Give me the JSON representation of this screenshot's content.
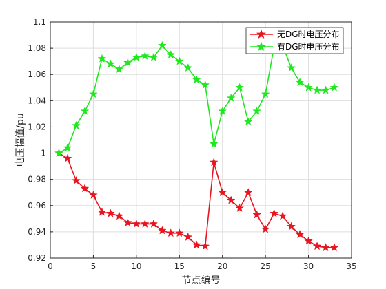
{
  "chart_data": {
    "type": "line",
    "title": "",
    "xlabel": "节点编号",
    "ylabel": "电压幅值/pu",
    "xlim": [
      0,
      35
    ],
    "ylim": [
      0.92,
      1.1
    ],
    "xticks": [
      0,
      5,
      10,
      15,
      20,
      25,
      30,
      35
    ],
    "yticks": [
      0.92,
      0.94,
      0.96,
      0.98,
      1,
      1.02,
      1.04,
      1.06,
      1.08,
      1.1
    ],
    "grid": true,
    "legend_position": "top-right",
    "x": [
      1,
      2,
      3,
      4,
      5,
      6,
      7,
      8,
      9,
      10,
      11,
      12,
      13,
      14,
      15,
      16,
      17,
      18,
      19,
      20,
      21,
      22,
      23,
      24,
      25,
      26,
      27,
      28,
      29,
      30,
      31,
      32,
      33
    ],
    "series": [
      {
        "name": "无DG时电压分布",
        "color": "#e8141e",
        "marker": "star",
        "values": [
          1.0,
          0.996,
          0.979,
          0.973,
          0.968,
          0.955,
          0.954,
          0.952,
          0.947,
          0.946,
          0.946,
          0.946,
          0.941,
          0.939,
          0.939,
          0.936,
          0.93,
          0.929,
          0.993,
          0.97,
          0.964,
          0.958,
          0.97,
          0.953,
          0.942,
          0.954,
          0.952,
          0.944,
          0.938,
          0.933,
          0.929,
          0.928,
          0.928
        ]
      },
      {
        "name": "有DG时电压分布",
        "color": "#1ee81e",
        "marker": "star",
        "values": [
          1.0,
          1.004,
          1.021,
          1.032,
          1.045,
          1.072,
          1.068,
          1.064,
          1.069,
          1.073,
          1.074,
          1.073,
          1.082,
          1.075,
          1.07,
          1.065,
          1.056,
          1.052,
          1.007,
          1.032,
          1.042,
          1.05,
          1.024,
          1.032,
          1.045,
          1.081,
          1.082,
          1.065,
          1.054,
          1.05,
          1.048,
          1.048,
          1.05
        ]
      }
    ]
  }
}
